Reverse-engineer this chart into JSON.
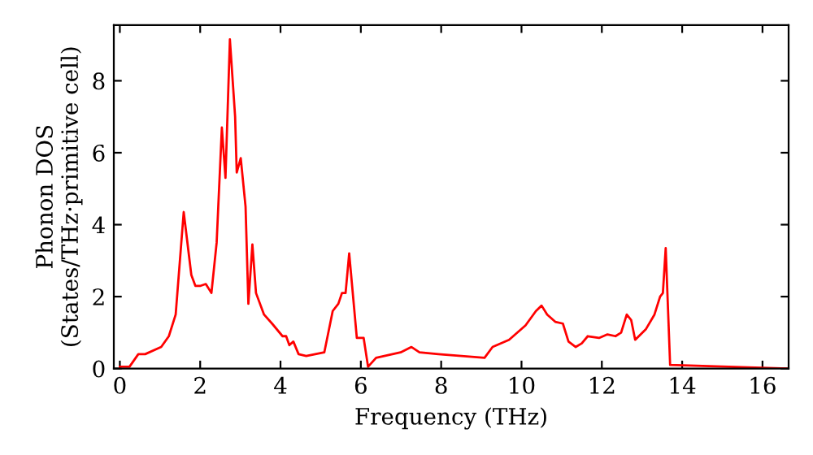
{
  "chart_data": {
    "type": "line",
    "xlabel": "Frequency (THz)",
    "ylabel": "Phonon DOS\n(States/THz·primitive cell)",
    "series": [
      {
        "color": "#ff0000",
        "x": [
          0,
          0.24,
          0.46,
          0.63,
          1.03,
          1.22,
          1.39,
          1.59,
          1.78,
          1.88,
          2.01,
          2.14,
          2.28,
          2.41,
          2.54,
          2.63,
          2.74,
          2.87,
          2.91,
          3.01,
          3.13,
          3.2,
          3.3,
          3.39,
          3.59,
          3.79,
          4.05,
          4.14,
          4.22,
          4.32,
          4.45,
          4.64,
          5.09,
          5.3,
          5.44,
          5.53,
          5.62,
          5.71,
          5.9,
          6.07,
          6.18,
          6.38,
          6.99,
          7.26,
          7.46,
          7.93,
          9.08,
          9.28,
          9.69,
          10.1,
          10.36,
          10.5,
          10.64,
          10.84,
          11.03,
          11.17,
          11.35,
          11.5,
          11.65,
          11.93,
          12.14,
          12.34,
          12.48,
          12.62,
          12.73,
          12.83,
          13.1,
          13.31,
          13.45,
          13.52,
          13.59,
          13.7,
          16.6
        ],
        "values": [
          0.05,
          0.05,
          0.4,
          0.4,
          0.6,
          0.9,
          1.5,
          4.35,
          2.6,
          2.3,
          2.3,
          2.35,
          2.1,
          3.5,
          6.7,
          5.3,
          9.15,
          7.0,
          5.45,
          5.85,
          4.5,
          1.8,
          3.45,
          2.1,
          1.5,
          1.25,
          0.9,
          0.9,
          0.65,
          0.75,
          0.4,
          0.35,
          0.45,
          1.6,
          1.8,
          2.1,
          2.1,
          3.2,
          0.85,
          0.85,
          0.05,
          0.3,
          0.45,
          0.6,
          0.45,
          0.4,
          0.3,
          0.6,
          0.8,
          1.2,
          1.6,
          1.75,
          1.5,
          1.3,
          1.25,
          0.75,
          0.6,
          0.7,
          0.9,
          0.85,
          0.95,
          0.9,
          1.0,
          1.5,
          1.35,
          0.8,
          1.1,
          1.5,
          2.0,
          2.1,
          3.35,
          0.1,
          0.0
        ]
      }
    ],
    "xlim": [
      -0.15,
      16.65
    ],
    "ylim": [
      0,
      9.55
    ],
    "xticks": [
      0,
      2,
      4,
      6,
      8,
      10,
      12,
      14,
      16
    ],
    "yticks": [
      0,
      2,
      4,
      6,
      8
    ],
    "grid": false,
    "legend": false,
    "marker": "none",
    "line_style": "solid"
  }
}
